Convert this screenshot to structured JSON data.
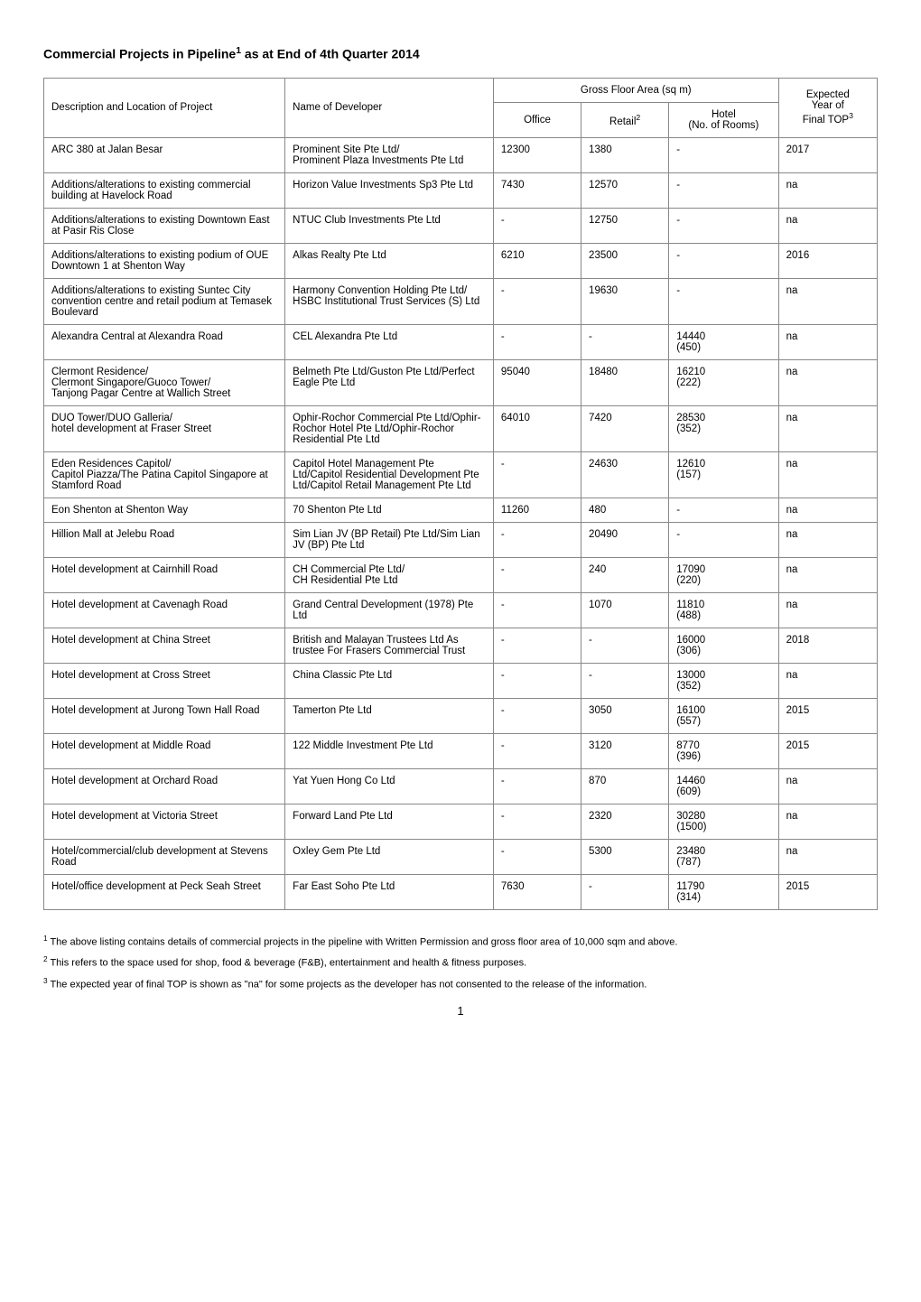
{
  "title_prefix": "Commercial Projects in Pipeline",
  "title_suffix": " as at End of 4th Quarter 2014",
  "header": {
    "desc": "Description and Location of Project",
    "dev": "Name of Developer",
    "gfa": "Gross Floor Area (sq m)",
    "office": "Office",
    "retail": "Retail",
    "hotel_l1": "Hotel",
    "hotel_l2": "(No. of Rooms)",
    "expected_l1": "Expected",
    "expected_l2": "Year of",
    "expected_l3": "Final TOP"
  },
  "rows": [
    {
      "desc": "ARC 380 at Jalan Besar",
      "dev": "Prominent Site Pte Ltd/\nProminent Plaza Investments Pte Ltd",
      "office": "12300",
      "retail": "1380",
      "hotel": "-",
      "top": "2017"
    },
    {
      "desc": "Additions/alterations to existing commercial building at Havelock Road",
      "dev": "Horizon Value Investments Sp3 Pte Ltd",
      "office": "7430",
      "retail": "12570",
      "hotel": "-",
      "top": "na"
    },
    {
      "desc": "Additions/alterations to existing Downtown East at Pasir Ris Close",
      "dev": "NTUC Club Investments Pte Ltd",
      "office": "-",
      "retail": "12750",
      "hotel": "-",
      "top": "na"
    },
    {
      "desc": "Additions/alterations to existing podium of OUE Downtown 1 at Shenton Way",
      "dev": "Alkas Realty Pte Ltd",
      "office": "6210",
      "retail": "23500",
      "hotel": "-",
      "top": "2016"
    },
    {
      "desc": "Additions/alterations to existing Suntec City convention centre and retail podium at Temasek Boulevard",
      "dev": "Harmony Convention Holding Pte Ltd/\nHSBC Institutional Trust Services (S) Ltd",
      "office": "-",
      "retail": "19630",
      "hotel": "-",
      "top": "na"
    },
    {
      "desc": "Alexandra Central at Alexandra Road",
      "dev": "CEL Alexandra Pte Ltd",
      "office": "-",
      "retail": "-",
      "hotel": "14440\n(450)",
      "top": "na"
    },
    {
      "desc": "Clermont Residence/\nClermont Singapore/Guoco Tower/\nTanjong Pagar Centre at Wallich Street",
      "dev": "Belmeth Pte Ltd/Guston Pte Ltd/Perfect Eagle Pte Ltd",
      "office": "95040",
      "retail": "18480",
      "hotel": "16210\n(222)",
      "top": "na"
    },
    {
      "desc": "DUO Tower/DUO Galleria/\nhotel development at Fraser Street",
      "dev": "Ophir-Rochor Commercial Pte Ltd/Ophir-Rochor Hotel Pte Ltd/Ophir-Rochor Residential Pte Ltd",
      "office": "64010",
      "retail": "7420",
      "hotel": "28530\n(352)",
      "top": "na"
    },
    {
      "desc": "Eden Residences Capitol/\nCapitol Piazza/The Patina Capitol Singapore at Stamford Road",
      "dev": "Capitol Hotel Management Pte Ltd/Capitol Residential Development Pte Ltd/Capitol Retail Management Pte Ltd",
      "office": "-",
      "retail": "24630",
      "hotel": "12610\n(157)",
      "top": "na"
    },
    {
      "desc": "Eon Shenton at Shenton Way",
      "dev": "70 Shenton Pte Ltd",
      "office": "11260",
      "retail": "480",
      "hotel": "-",
      "top": "na"
    },
    {
      "desc": "Hillion Mall at Jelebu Road",
      "dev": "Sim Lian JV (BP Retail) Pte Ltd/Sim Lian JV (BP) Pte Ltd",
      "office": "-",
      "retail": "20490",
      "hotel": "-",
      "top": "na"
    },
    {
      "desc": "Hotel development at Cairnhill Road",
      "dev": "CH Commercial Pte Ltd/\nCH Residential Pte Ltd",
      "office": "-",
      "retail": "240",
      "hotel": "17090\n(220)",
      "top": "na"
    },
    {
      "desc": "Hotel development at Cavenagh Road",
      "dev": "Grand Central Development (1978) Pte Ltd",
      "office": "-",
      "retail": "1070",
      "hotel": "11810\n(488)",
      "top": "na"
    },
    {
      "desc": "Hotel development at China Street",
      "dev": "British and Malayan Trustees Ltd As trustee For Frasers Commercial Trust",
      "office": "-",
      "retail": "-",
      "hotel": "16000\n(306)",
      "top": "2018"
    },
    {
      "desc": "Hotel development at Cross Street",
      "dev": "China Classic Pte Ltd",
      "office": "-",
      "retail": "-",
      "hotel": "13000\n(352)",
      "top": "na"
    },
    {
      "desc": "Hotel development at Jurong Town Hall Road",
      "dev": "Tamerton Pte Ltd",
      "office": "-",
      "retail": "3050",
      "hotel": "16100\n(557)",
      "top": "2015"
    },
    {
      "desc": "Hotel development at Middle Road",
      "dev": "122 Middle Investment Pte Ltd",
      "office": "-",
      "retail": "3120",
      "hotel": "8770\n(396)",
      "top": "2015"
    },
    {
      "desc": "Hotel development at Orchard Road",
      "dev": "Yat Yuen Hong Co Ltd",
      "office": "-",
      "retail": "870",
      "hotel": "14460\n(609)",
      "top": "na"
    },
    {
      "desc": "Hotel development at Victoria Street",
      "dev": "Forward Land Pte Ltd",
      "office": "-",
      "retail": "2320",
      "hotel": "30280\n(1500)",
      "top": "na"
    },
    {
      "desc": "Hotel/commercial/club development at Stevens Road",
      "dev": "Oxley Gem Pte Ltd",
      "office": "-",
      "retail": "5300",
      "hotel": "23480\n(787)",
      "top": "na"
    },
    {
      "desc": "Hotel/office development at Peck Seah Street",
      "dev": "Far East Soho Pte Ltd",
      "office": "7630",
      "retail": "-",
      "hotel": "11790\n(314)",
      "top": "2015"
    }
  ],
  "footnotes": {
    "f1": "The above listing contains details of commercial projects in the pipeline with Written Permission and gross floor area of 10,000 sqm and above.",
    "f2": "This refers to the space used for shop, food & beverage (F&B), entertainment and health & fitness purposes.",
    "f3": "The expected year of final TOP is shown as \"na\" for some projects as the developer has not consented to the release of the information."
  },
  "page_number": "1"
}
